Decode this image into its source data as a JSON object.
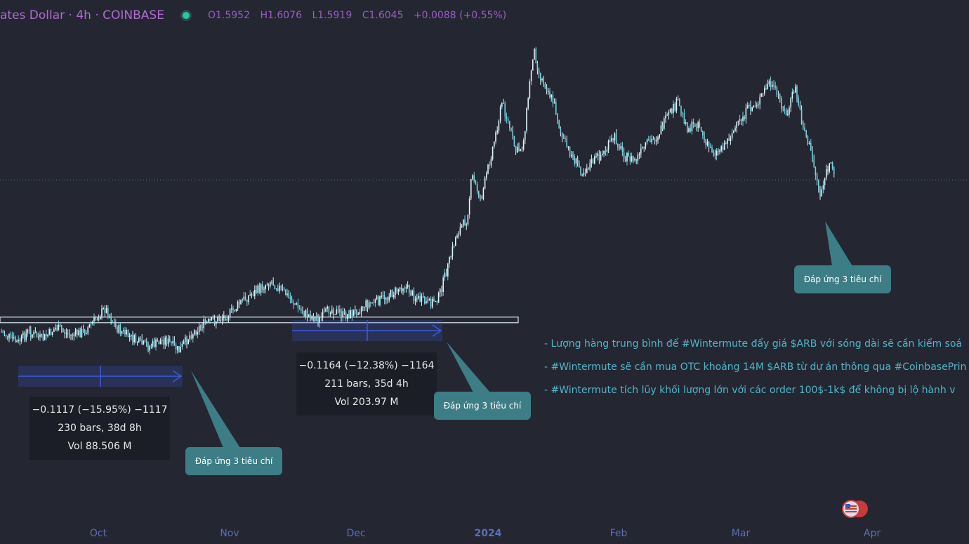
{
  "header": {
    "symbol": "ates Dollar · 4h · COINBASE",
    "open_key": "O",
    "open": "1.5952",
    "high_key": "H",
    "high": "1.6076",
    "low_key": "L",
    "low": "1.5919",
    "close_key": "C",
    "close": "1.6045",
    "change": "+0.0088 (+0.55%)"
  },
  "chart_data": {
    "type": "candlestick",
    "x_labels": [
      {
        "label": "Oct",
        "bold": false
      },
      {
        "label": "Nov",
        "bold": false
      },
      {
        "label": "Dec",
        "bold": false
      },
      {
        "label": "2024",
        "bold": true
      },
      {
        "label": "Feb",
        "bold": false
      },
      {
        "label": "Mar",
        "bold": false
      },
      {
        "label": "Apr",
        "bold": false
      }
    ],
    "price_path": [
      [
        0,
        0.72
      ],
      [
        10,
        0.71
      ],
      [
        25,
        0.69
      ],
      [
        40,
        0.72
      ],
      [
        60,
        0.7
      ],
      [
        80,
        0.73
      ],
      [
        100,
        0.71
      ],
      [
        120,
        0.72
      ],
      [
        135,
        0.75
      ],
      [
        150,
        0.78
      ],
      [
        165,
        0.73
      ],
      [
        190,
        0.7
      ],
      [
        210,
        0.68
      ],
      [
        235,
        0.7
      ],
      [
        255,
        0.67
      ],
      [
        270,
        0.71
      ],
      [
        290,
        0.74
      ],
      [
        310,
        0.75
      ],
      [
        330,
        0.77
      ],
      [
        345,
        0.8
      ],
      [
        370,
        0.83
      ],
      [
        385,
        0.85
      ],
      [
        400,
        0.83
      ],
      [
        415,
        0.8
      ],
      [
        430,
        0.77
      ],
      [
        455,
        0.75
      ],
      [
        470,
        0.78
      ],
      [
        490,
        0.76
      ],
      [
        505,
        0.77
      ],
      [
        520,
        0.79
      ],
      [
        540,
        0.8
      ],
      [
        560,
        0.82
      ],
      [
        575,
        0.84
      ],
      [
        590,
        0.81
      ],
      [
        610,
        0.79
      ],
      [
        625,
        0.81
      ],
      [
        640,
        0.9
      ],
      [
        650,
        0.97
      ],
      [
        665,
        1.01
      ],
      [
        672,
        1.12
      ],
      [
        685,
        1.06
      ],
      [
        695,
        1.14
      ],
      [
        705,
        1.22
      ],
      [
        715,
        1.31
      ],
      [
        725,
        1.25
      ],
      [
        735,
        1.18
      ],
      [
        745,
        1.2
      ],
      [
        752,
        1.32
      ],
      [
        760,
        1.45
      ],
      [
        768,
        1.38
      ],
      [
        778,
        1.35
      ],
      [
        790,
        1.3
      ],
      [
        800,
        1.22
      ],
      [
        815,
        1.17
      ],
      [
        830,
        1.13
      ],
      [
        845,
        1.16
      ],
      [
        860,
        1.18
      ],
      [
        875,
        1.22
      ],
      [
        890,
        1.17
      ],
      [
        905,
        1.16
      ],
      [
        920,
        1.2
      ],
      [
        935,
        1.22
      ],
      [
        950,
        1.27
      ],
      [
        965,
        1.31
      ],
      [
        980,
        1.24
      ],
      [
        995,
        1.26
      ],
      [
        1005,
        1.2
      ],
      [
        1020,
        1.18
      ],
      [
        1035,
        1.21
      ],
      [
        1050,
        1.25
      ],
      [
        1065,
        1.29
      ],
      [
        1080,
        1.31
      ],
      [
        1095,
        1.36
      ],
      [
        1110,
        1.32
      ],
      [
        1120,
        1.27
      ],
      [
        1132,
        1.35
      ],
      [
        1142,
        1.26
      ],
      [
        1152,
        1.2
      ],
      [
        1160,
        1.14
      ],
      [
        1168,
        1.07
      ],
      [
        1175,
        1.12
      ],
      [
        1182,
        1.15
      ],
      [
        1190,
        1.11
      ]
    ],
    "support_level": 0.75,
    "current_level": 1.11,
    "measurements": [
      {
        "change": "−0.1117 (−15.95%) −1117",
        "bars": "230 bars, 38d 8h",
        "volume": "Vol 88.506 M"
      },
      {
        "change": "−0.1164 (−12.38%) −1164",
        "bars": "211 bars, 35d 4h",
        "volume": "Vol 203.97 M"
      }
    ]
  },
  "callouts": [
    "Đáp ứng 3 tiêu chí",
    "Đáp ứng 3 tiêu chí",
    "Đáp ứng 3 tiêu chí"
  ],
  "notes": [
    "- Lượng hàng trung bình để #Wintermute đẩy giá $ARB với sóng dài sẽ cần kiểm soá",
    "- #Wintermute sẽ cần mua OTC khoảng 14M $ARB từ dự án thông qua #CoinbasePrin",
    "- #Wintermute tích lũy khối lượng lớn với các order 100$-1k$ để không bị lộ hành v"
  ],
  "colors": {
    "background": "#242632",
    "candle": "#dff2f7",
    "candle_alt": "#6fd3e0",
    "measure": "#3b5bd6",
    "callout": "#3d7d86",
    "support_line": "#b7c7cf",
    "dotted_line": "#3f8a96"
  }
}
